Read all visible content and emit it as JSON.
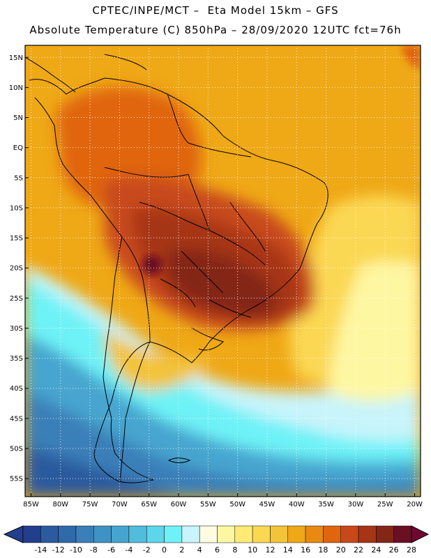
{
  "header": {
    "line1": "CPTEC/INPE/MCT –  Eta Model 15km – GFS",
    "line2": "Absolute Temperature (C) 850hPa – 28/09/2020 12UTC fct=76h"
  },
  "map": {
    "variable": "Absolute Temperature",
    "units": "C",
    "level": "850hPa",
    "lon_range": [
      -86,
      -19
    ],
    "lat_range": [
      -58,
      17
    ],
    "lat_ticks": [
      "15N",
      "10N",
      "5N",
      "EQ",
      "5S",
      "10S",
      "15S",
      "20S",
      "25S",
      "30S",
      "35S",
      "40S",
      "45S",
      "50S",
      "55S"
    ],
    "lat_values": [
      15,
      10,
      5,
      0,
      -5,
      -10,
      -15,
      -20,
      -25,
      -30,
      -35,
      -40,
      -45,
      -50,
      -55
    ],
    "lon_ticks": [
      "85W",
      "80W",
      "75W",
      "70W",
      "65W",
      "60W",
      "55W",
      "50W",
      "45W",
      "40W",
      "35W",
      "30W",
      "25W",
      "20W"
    ],
    "lon_values": [
      -85,
      -80,
      -75,
      -70,
      -65,
      -60,
      -55,
      -50,
      -45,
      -40,
      -35,
      -30,
      -25,
      -20
    ]
  },
  "colorbar": {
    "labels": [
      "-14",
      "-12",
      "-10",
      "-8",
      "-6",
      "-4",
      "-2",
      "0",
      "2",
      "4",
      "6",
      "8",
      "10",
      "12",
      "14",
      "16",
      "18",
      "20",
      "22",
      "24",
      "26",
      "28"
    ],
    "colors": [
      "#233e8c",
      "#2c5a9e",
      "#2f6aaa",
      "#3a7fb8",
      "#3f92c4",
      "#46a5cf",
      "#52bcdc",
      "#5ed6ea",
      "#6ef2f7",
      "#c8f4fb",
      "#fffbe2",
      "#fef7a2",
      "#feea74",
      "#fbd852",
      "#f3c33a",
      "#efa816",
      "#e88a12",
      "#e0650f",
      "#c8481a",
      "#a63515",
      "#842615",
      "#6a0f24"
    ],
    "under_color": "#233e8c",
    "over_color": "#6e0833"
  },
  "field_colors": {
    "warm_core": "#6a0f24",
    "very_hot": "#842615",
    "hot": "#a63515",
    "warm": "#c8481a",
    "orange_dark": "#e0650f",
    "orange": "#e88a12",
    "orange_light": "#efa816",
    "yellow_orange": "#f3c33a",
    "yellow": "#fbd852",
    "pale_yellow": "#fef7a2",
    "cream": "#fffbe2",
    "pale_cyan": "#c8f4fb",
    "cyan": "#6ef2f7",
    "cyan_mid": "#52bcdc",
    "blue_light": "#46a5cf",
    "blue": "#3a7fb8",
    "blue_dark": "#2c5a9e",
    "navy": "#233e8c"
  }
}
